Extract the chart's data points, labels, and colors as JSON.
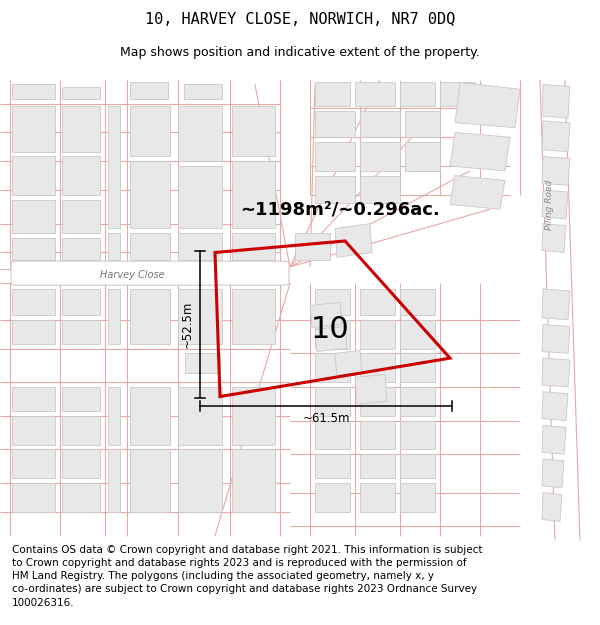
{
  "title_line1": "10, HARVEY CLOSE, NORWICH, NR7 0DQ",
  "title_line2": "Map shows position and indicative extent of the property.",
  "footer_text": "Contains OS data © Crown copyright and database right 2021. This information is subject to Crown copyright and database rights 2023 and is reproduced with the permission of HM Land Registry. The polygons (including the associated geometry, namely x, y co-ordinates) are subject to Crown copyright and database rights 2023 Ordnance Survey 100026316.",
  "area_label": "~1198m²/~0.296ac.",
  "number_label": "10",
  "dim_height": "~52.5m",
  "dim_width": "~61.5m",
  "road_label": "Harvey Close",
  "road_label2": "Piling Road",
  "map_bg": "#f7f6f2",
  "plot_color": "#cc0000",
  "building_fill": "#e8e8e8",
  "building_edge": "#c8c8c8",
  "road_line_color": "#e8a8a8",
  "title_fontsize": 11,
  "subtitle_fontsize": 9,
  "footer_fontsize": 7.5
}
